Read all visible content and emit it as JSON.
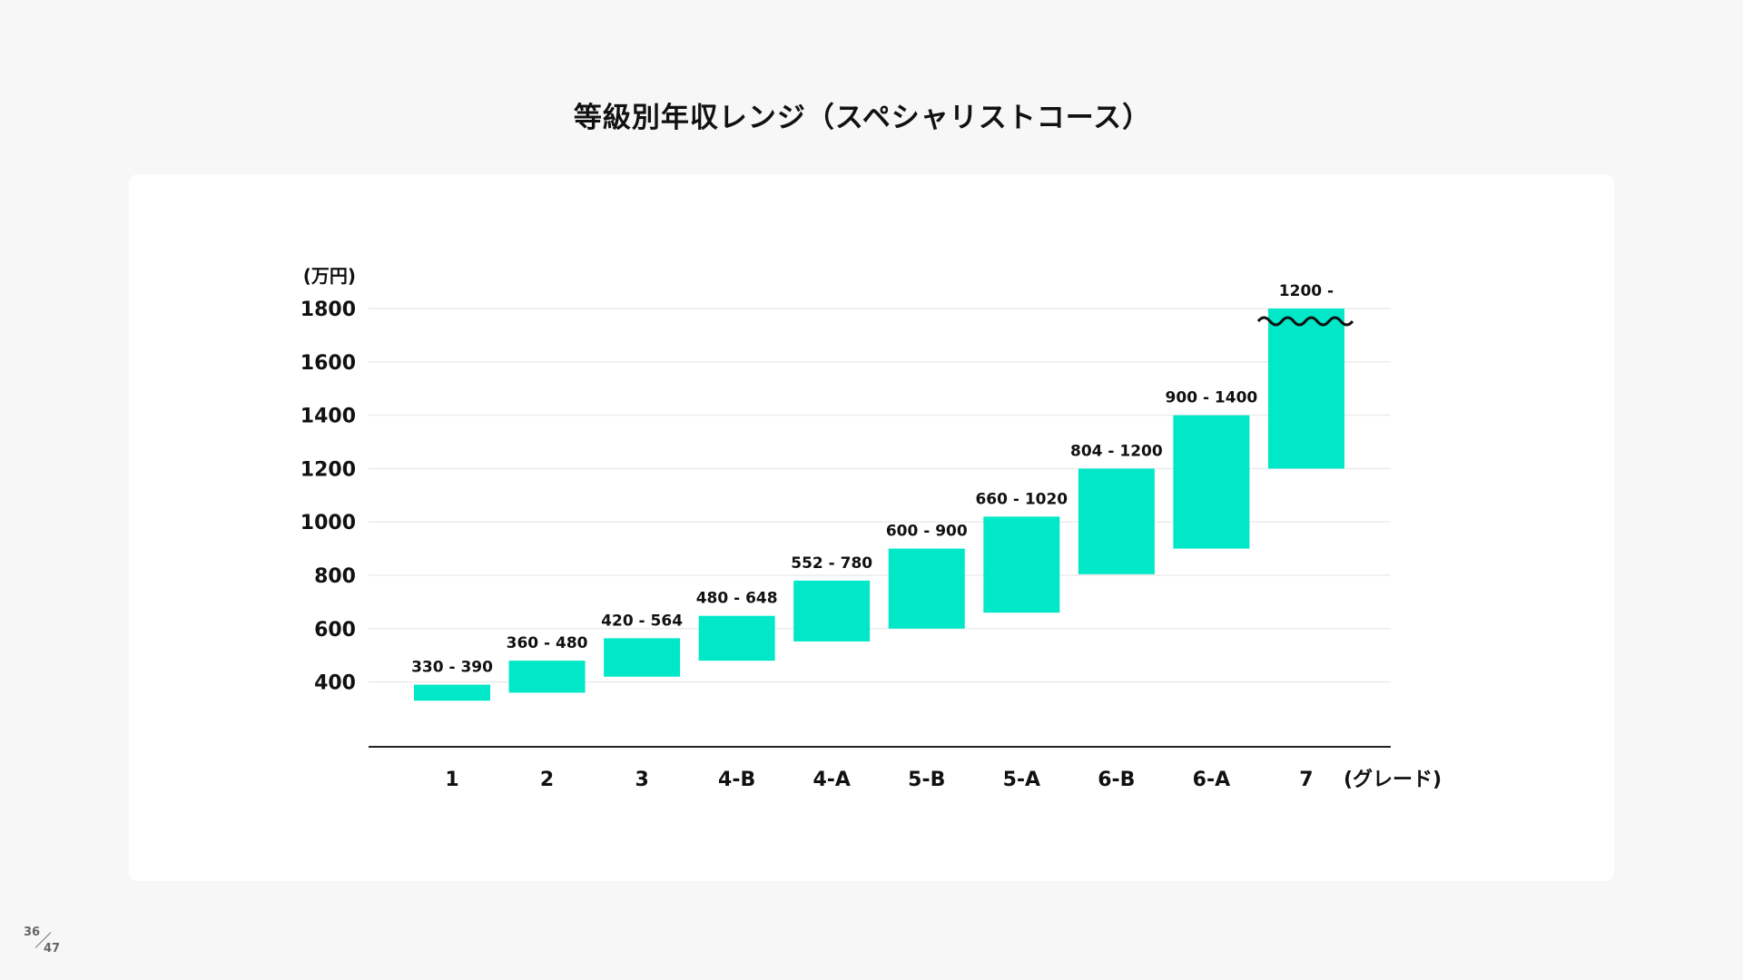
{
  "chart_data": {
    "type": "bar",
    "subtype": "floating-range",
    "title": "等級別年収レンジ（スペシャリストコース）",
    "ylabel": "(万円)",
    "xlabel": "(グレード)",
    "yticks": [
      400,
      600,
      800,
      1000,
      1200,
      1400,
      1600,
      1800
    ],
    "ylim": [
      160,
      1800
    ],
    "grid": true,
    "bar_color": "#00e8c8",
    "categories": [
      "1",
      "2",
      "3",
      "4-B",
      "4-A",
      "5-B",
      "5-A",
      "6-B",
      "6-A",
      "7"
    ],
    "ranges": [
      [
        330,
        390
      ],
      [
        360,
        480
      ],
      [
        420,
        564
      ],
      [
        480,
        648
      ],
      [
        552,
        780
      ],
      [
        600,
        900
      ],
      [
        660,
        1020
      ],
      [
        804,
        1200
      ],
      [
        900,
        1400
      ],
      [
        1200,
        null
      ]
    ],
    "data_labels": [
      "330 - 390",
      "360 - 480",
      "420 - 564",
      "480 - 648",
      "552 - 780",
      "600 - 900",
      "660 - 1020",
      "804 - 1200",
      "900 - 1400",
      "1200 -"
    ],
    "open_ended_break": "wavy line on grade 7 bar"
  },
  "page": {
    "current": "36",
    "total": "47"
  }
}
